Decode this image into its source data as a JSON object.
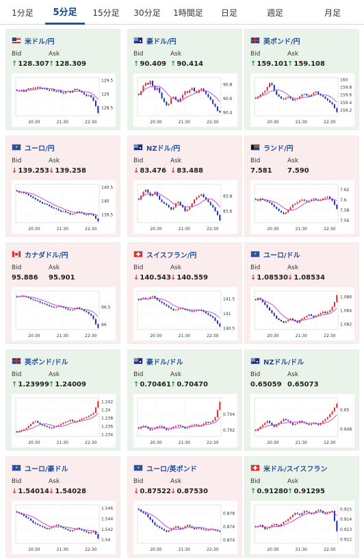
{
  "tabs": [
    {
      "label": "1分足",
      "active": false
    },
    {
      "label": "5分足",
      "active": true
    },
    {
      "label": "15分足",
      "active": false
    },
    {
      "label": "30分足",
      "active": false
    },
    {
      "label": "1時間足",
      "active": false
    },
    {
      "label": "日足",
      "active": false
    },
    {
      "label": "週足",
      "active": false
    },
    {
      "label": "月足",
      "active": false
    }
  ],
  "labels": {
    "bid": "Bid",
    "ask": "Ask"
  },
  "colors": {
    "up_bg": "#eaf3ea",
    "down_bg": "#fbeded",
    "up": "#1d9a3c",
    "down": "#d03030",
    "title": "#1f4e9c",
    "ma_line": "#c13bd4",
    "candle_up": "#e02a2a",
    "candle_down": "#1a2fb0"
  },
  "cards": [
    {
      "title": "米ドル/円",
      "flag": "flag-us-icon",
      "trend": "up",
      "bid": "128.307",
      "ask": "128.309",
      "bid_dir": "up",
      "ask_dir": "up",
      "chart_data": {
        "type": "candlestick",
        "x_ticks": [
          "20:30",
          "21:30",
          "22:30"
        ],
        "y_ticks": [
          "129.5",
          "129",
          "128.5"
        ],
        "ylim": [
          128.2,
          129.6
        ],
        "closes": [
          129.12,
          129.1,
          129.14,
          129.08,
          129.15,
          129.2,
          129.18,
          129.22,
          129.2,
          129.25,
          129.22,
          129.18,
          129.2,
          129.15,
          129.12,
          129.16,
          129.1,
          129.08,
          129.12,
          129.05,
          129.02,
          129.08,
          129.1,
          129.05,
          129.12,
          129.18,
          129.15,
          129.1,
          129.05,
          128.98,
          128.92,
          128.95,
          128.88,
          128.75,
          128.55,
          128.3
        ]
      }
    },
    {
      "title": "豪ドル/円",
      "flag": "flag-au-icon",
      "trend": "up",
      "bid": "90.409",
      "ask": "90.414",
      "bid_dir": "up",
      "ask_dir": "up",
      "chart_data": {
        "type": "candlestick",
        "x_ticks": [
          "20:30",
          "21:30",
          "22:30"
        ],
        "y_ticks": [
          "90.8",
          "90.6",
          "90.4"
        ],
        "ylim": [
          90.35,
          90.9
        ],
        "closes": [
          90.65,
          90.7,
          90.78,
          90.82,
          90.8,
          90.85,
          90.78,
          90.72,
          90.75,
          90.68,
          90.6,
          90.55,
          90.5,
          90.52,
          90.6,
          90.62,
          90.58,
          90.55,
          90.6,
          90.65,
          90.7,
          90.68,
          90.72,
          90.75,
          90.7,
          90.68,
          90.72,
          90.74,
          90.7,
          90.66,
          90.62,
          90.58,
          90.52,
          90.48,
          90.42,
          90.4
        ]
      }
    },
    {
      "title": "英ポンド/円",
      "flag": "flag-gb-icon",
      "trend": "up",
      "bid": "159.101",
      "ask": "159.108",
      "bid_dir": "up",
      "ask_dir": "up",
      "chart_data": {
        "type": "candlestick",
        "x_ticks": [
          "20:30",
          "21:30",
          "22:30"
        ],
        "y_ticks": [
          "160",
          "159.8",
          "159.6",
          "159.4",
          "159.2"
        ],
        "ylim": [
          159.05,
          160.05
        ],
        "closes": [
          159.5,
          159.55,
          159.6,
          159.65,
          159.7,
          159.8,
          159.9,
          159.85,
          159.7,
          159.6,
          159.55,
          159.5,
          159.48,
          159.52,
          159.55,
          159.5,
          159.45,
          159.48,
          159.5,
          159.55,
          159.6,
          159.62,
          159.58,
          159.55,
          159.6,
          159.65,
          159.68,
          159.62,
          159.58,
          159.55,
          159.5,
          159.45,
          159.4,
          159.35,
          159.25,
          159.15
        ]
      }
    },
    {
      "title": "ユーロ/円",
      "flag": "flag-eu-icon",
      "trend": "down",
      "bid": "139.253",
      "ask": "139.258",
      "bid_dir": "down",
      "ask_dir": "down",
      "chart_data": {
        "type": "candlestick",
        "x_ticks": [
          "20:30",
          "21:30",
          "22:30"
        ],
        "y_ticks": [
          "140.5",
          "140",
          "139.5"
        ],
        "ylim": [
          139.2,
          140.6
        ],
        "closes": [
          140.35,
          140.3,
          140.32,
          140.28,
          140.25,
          140.2,
          140.15,
          140.1,
          140.05,
          140.0,
          139.95,
          139.9,
          139.88,
          139.85,
          139.8,
          139.75,
          139.72,
          139.7,
          139.65,
          139.6,
          139.62,
          139.58,
          139.55,
          139.5,
          139.52,
          139.55,
          139.6,
          139.58,
          139.55,
          139.5,
          139.48,
          139.52,
          139.5,
          139.45,
          139.35,
          139.25
        ]
      }
    },
    {
      "title": "NZドル/円",
      "flag": "flag-nz-icon",
      "trend": "down",
      "bid": "83.476",
      "ask": "83.488",
      "bid_dir": "down",
      "ask_dir": "down",
      "chart_data": {
        "type": "candlestick",
        "x_ticks": [
          "20:30",
          "21:30",
          "22:30"
        ],
        "y_ticks": [
          "83.8",
          "83.6"
        ],
        "ylim": [
          83.45,
          83.95
        ],
        "closes": [
          83.75,
          83.8,
          83.85,
          83.88,
          83.84,
          83.8,
          83.82,
          83.85,
          83.8,
          83.75,
          83.72,
          83.7,
          83.68,
          83.65,
          83.62,
          83.65,
          83.7,
          83.72,
          83.68,
          83.65,
          83.6,
          83.62,
          83.65,
          83.7,
          83.75,
          83.78,
          83.8,
          83.82,
          83.78,
          83.75,
          83.72,
          83.68,
          83.65,
          83.6,
          83.55,
          83.48
        ]
      }
    },
    {
      "title": "ランド/円",
      "flag": "flag-za-icon",
      "trend": "down",
      "bid": "7.581",
      "ask": "7.590",
      "bid_dir": "none",
      "ask_dir": "none",
      "chart_data": {
        "type": "candlestick",
        "x_ticks": [
          "20:30",
          "21:30",
          "22:30"
        ],
        "y_ticks": [
          "7.62",
          "7.6",
          "7.58",
          "7.56"
        ],
        "ylim": [
          7.555,
          7.63
        ],
        "closes": [
          7.6,
          7.598,
          7.602,
          7.6,
          7.598,
          7.596,
          7.594,
          7.59,
          7.586,
          7.582,
          7.578,
          7.575,
          7.572,
          7.575,
          7.58,
          7.585,
          7.59,
          7.592,
          7.595,
          7.598,
          7.6,
          7.598,
          7.596,
          7.598,
          7.6,
          7.602,
          7.6,
          7.598,
          7.6,
          7.602,
          7.604,
          7.606,
          7.602,
          7.598,
          7.59,
          7.582
        ]
      }
    },
    {
      "title": "カナダドル/円",
      "flag": "flag-ca-icon",
      "trend": "down",
      "bid": "95.886",
      "ask": "95.901",
      "bid_dir": "none",
      "ask_dir": "none",
      "chart_data": {
        "type": "candlestick",
        "x_ticks": [
          "20:30",
          "21:30",
          "22:30"
        ],
        "y_ticks": [
          "96.5",
          "96"
        ],
        "ylim": [
          95.85,
          96.95
        ],
        "closes": [
          96.78,
          96.8,
          96.82,
          96.8,
          96.78,
          96.76,
          96.72,
          96.7,
          96.68,
          96.66,
          96.62,
          96.6,
          96.58,
          96.55,
          96.52,
          96.5,
          96.48,
          96.5,
          96.52,
          96.5,
          96.48,
          96.45,
          96.42,
          96.4,
          96.42,
          96.45,
          96.48,
          96.45,
          96.42,
          96.38,
          96.35,
          96.3,
          96.25,
          96.15,
          96.0,
          95.9
        ]
      }
    },
    {
      "title": "スイスフラン/円",
      "flag": "flag-ch-icon",
      "trend": "down",
      "bid": "140.543",
      "ask": "140.559",
      "bid_dir": "down",
      "ask_dir": "down",
      "chart_data": {
        "type": "candlestick",
        "x_ticks": [
          "20:30",
          "21:30",
          "22:30"
        ],
        "y_ticks": [
          "141.5",
          "141",
          "140.5"
        ],
        "ylim": [
          140.45,
          141.75
        ],
        "closes": [
          141.45,
          141.5,
          141.52,
          141.48,
          141.5,
          141.55,
          141.58,
          141.52,
          141.45,
          141.4,
          141.35,
          141.3,
          141.25,
          141.2,
          141.15,
          141.1,
          141.12,
          141.15,
          141.18,
          141.15,
          141.12,
          141.1,
          141.08,
          141.05,
          141.08,
          141.1,
          141.12,
          141.1,
          141.05,
          141.0,
          140.95,
          140.9,
          140.85,
          140.75,
          140.65,
          140.55
        ]
      }
    },
    {
      "title": "ユーロ/ドル",
      "flag": "flag-eu-icon",
      "trend": "down",
      "bid": "1.08530",
      "ask": "1.08534",
      "bid_dir": "down",
      "ask_dir": "down",
      "chart_data": {
        "type": "candlestick",
        "x_ticks": [
          "20:30",
          "21:30",
          "22:30"
        ],
        "y_ticks": [
          "1.086",
          "1.084",
          "1.082"
        ],
        "ylim": [
          1.0812,
          1.0868
        ],
        "closes": [
          1.0855,
          1.0858,
          1.0856,
          1.0852,
          1.0848,
          1.0844,
          1.084,
          1.0836,
          1.0832,
          1.0828,
          1.0826,
          1.0824,
          1.0822,
          1.0824,
          1.0826,
          1.0828,
          1.0826,
          1.0824,
          1.0822,
          1.0826,
          1.0828,
          1.083,
          1.0832,
          1.0834,
          1.0832,
          1.083,
          1.0832,
          1.0834,
          1.0836,
          1.0838,
          1.0836,
          1.0838,
          1.084,
          1.0845,
          1.0852,
          1.0862
        ]
      }
    },
    {
      "title": "英ポンド/ドル",
      "flag": "flag-gb-icon",
      "trend": "up",
      "bid": "1.23999",
      "ask": "1.24009",
      "bid_dir": "up",
      "ask_dir": "up",
      "chart_data": {
        "type": "candlestick",
        "x_ticks": [
          "20:30",
          "21:30",
          "22:30"
        ],
        "y_ticks": [
          "1.242",
          "1.24",
          "1.238",
          "1.236",
          "1.234"
        ],
        "ylim": [
          1.2335,
          1.2428
        ],
        "closes": [
          1.2345,
          1.2348,
          1.235,
          1.2352,
          1.2355,
          1.236,
          1.2365,
          1.237,
          1.2372,
          1.2368,
          1.2365,
          1.2362,
          1.236,
          1.2358,
          1.2356,
          1.2355,
          1.2358,
          1.236,
          1.2362,
          1.2365,
          1.2368,
          1.237,
          1.2372,
          1.2375,
          1.2372,
          1.237,
          1.2372,
          1.2375,
          1.2378,
          1.238,
          1.2382,
          1.2385,
          1.2388,
          1.2392,
          1.2405,
          1.242
        ]
      }
    },
    {
      "title": "豪ドル/ドル",
      "flag": "flag-au-icon",
      "trend": "up",
      "bid": "0.70461",
      "ask": "0.70470",
      "bid_dir": "up",
      "ask_dir": "up",
      "chart_data": {
        "type": "candlestick",
        "x_ticks": [
          "20:30",
          "21:30",
          "22:30"
        ],
        "y_ticks": [
          "0.704",
          "0.702"
        ],
        "ylim": [
          0.7012,
          0.706
        ],
        "closes": [
          0.7022,
          0.7024,
          0.7025,
          0.7024,
          0.7022,
          0.702,
          0.7021,
          0.7022,
          0.7024,
          0.7025,
          0.7024,
          0.7022,
          0.702,
          0.7021,
          0.7022,
          0.7024,
          0.7025,
          0.7026,
          0.7025,
          0.7024,
          0.7022,
          0.7023,
          0.7025,
          0.7026,
          0.7027,
          0.7026,
          0.7025,
          0.7026,
          0.7028,
          0.703,
          0.7029,
          0.703,
          0.7032,
          0.7036,
          0.7045,
          0.7055
        ]
      }
    },
    {
      "title": "NZドル/ドル",
      "flag": "flag-nz-icon",
      "trend": "up",
      "bid": "0.65059",
      "ask": "0.65073",
      "bid_dir": "none",
      "ask_dir": "none",
      "chart_data": {
        "type": "candlestick",
        "x_ticks": [
          "20:30",
          "21:30",
          "22:30"
        ],
        "y_ticks": [
          "0.65",
          "0.648"
        ],
        "ylim": [
          0.6472,
          0.6512
        ],
        "closes": [
          0.6478,
          0.648,
          0.6482,
          0.6484,
          0.6486,
          0.6488,
          0.6486,
          0.6484,
          0.6482,
          0.6484,
          0.6486,
          0.6488,
          0.649,
          0.6489,
          0.6488,
          0.6486,
          0.6484,
          0.6485,
          0.6486,
          0.6488,
          0.6487,
          0.6486,
          0.6485,
          0.6484,
          0.6485,
          0.6486,
          0.6485,
          0.6484,
          0.6486,
          0.6488,
          0.649,
          0.6492,
          0.6495,
          0.6498,
          0.6502,
          0.6506
        ]
      }
    },
    {
      "title": "ユーロ/豪ドル",
      "flag": "flag-eu-icon",
      "trend": "down",
      "bid": "1.54014",
      "ask": "1.54028",
      "bid_dir": "down",
      "ask_dir": "down",
      "chart_data": {
        "type": "candlestick",
        "x_ticks": [
          "20:30",
          "21:30",
          "22:30"
        ],
        "y_ticks": [
          "1.546",
          "1.544",
          "1.542",
          "1.54"
        ],
        "ylim": [
          1.5393,
          1.5466
        ],
        "closes": [
          1.5452,
          1.545,
          1.5448,
          1.5445,
          1.5442,
          1.544,
          1.5436,
          1.5432,
          1.543,
          1.5428,
          1.5426,
          1.5424,
          1.5422,
          1.542,
          1.5422,
          1.5424,
          1.5426,
          1.5428,
          1.5426,
          1.5424,
          1.5422,
          1.542,
          1.5418,
          1.5416,
          1.5418,
          1.542,
          1.5422,
          1.542,
          1.5418,
          1.5416,
          1.5414,
          1.5412,
          1.5414,
          1.5416,
          1.541,
          1.5402
        ]
      }
    },
    {
      "title": "ユーロ/英ポンド",
      "flag": "flag-eu-icon",
      "trend": "down",
      "bid": "0.87522",
      "ask": "0.87530",
      "bid_dir": "down",
      "ask_dir": "down",
      "chart_data": {
        "type": "candlestick",
        "x_ticks": [
          "20:30",
          "21:30",
          "22:30"
        ],
        "y_ticks": [
          "0.878",
          "0.876",
          "0.874"
        ],
        "ylim": [
          0.8735,
          0.8792
        ],
        "closes": [
          0.8785,
          0.8782,
          0.878,
          0.8778,
          0.8774,
          0.877,
          0.8766,
          0.8762,
          0.876,
          0.8758,
          0.8756,
          0.8754,
          0.8752,
          0.8754,
          0.8756,
          0.8758,
          0.876,
          0.8758,
          0.8756,
          0.8758,
          0.876,
          0.8762,
          0.876,
          0.8758,
          0.8756,
          0.8758,
          0.8757,
          0.8756,
          0.8755,
          0.8754,
          0.8755,
          0.8756,
          0.8755,
          0.8754,
          0.8753,
          0.8752
        ]
      }
    },
    {
      "title": "米ドル/スイスフラン",
      "flag": "flag-ch-icon",
      "trend": "up",
      "bid": "0.91280",
      "ask": "0.91295",
      "bid_dir": "up",
      "ask_dir": "up",
      "chart_data": {
        "type": "candlestick",
        "x_ticks": [
          "20:30",
          "21:30",
          "22:30"
        ],
        "y_ticks": [
          "0.915",
          "0.914",
          "0.913",
          "0.912"
        ],
        "ylim": [
          0.9116,
          0.9154
        ],
        "closes": [
          0.9132,
          0.9133,
          0.9134,
          0.9132,
          0.913,
          0.9131,
          0.9132,
          0.9134,
          0.9135,
          0.9134,
          0.9133,
          0.9135,
          0.9137,
          0.9138,
          0.914,
          0.9142,
          0.9144,
          0.9146,
          0.9145,
          0.9144,
          0.9146,
          0.9148,
          0.9147,
          0.9146,
          0.9145,
          0.9146,
          0.9148,
          0.9149,
          0.9148,
          0.9146,
          0.9145,
          0.9146,
          0.9147,
          0.9148,
          0.9138,
          0.9128
        ]
      }
    }
  ]
}
